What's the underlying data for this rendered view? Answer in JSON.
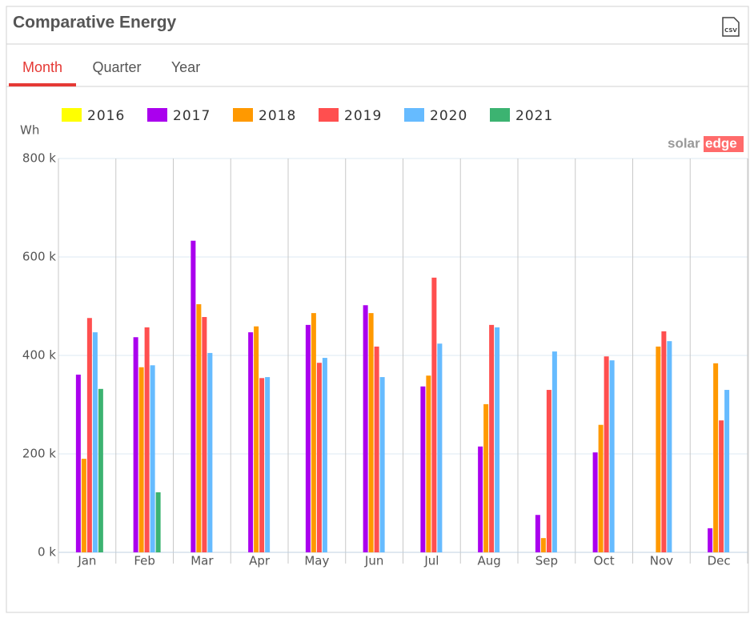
{
  "header": {
    "title": "Comparative Energy",
    "csv_icon": "CSV"
  },
  "tabs": [
    "Month",
    "Quarter",
    "Year"
  ],
  "logo": {
    "part1": "solar",
    "part2": "edge"
  },
  "chart_data": {
    "type": "bar",
    "y_label": "Wh",
    "categories": [
      "Jan",
      "Feb",
      "Mar",
      "Apr",
      "May",
      "Jun",
      "Jul",
      "Aug",
      "Sep",
      "Oct",
      "Nov",
      "Dec"
    ],
    "series": [
      {
        "name": "2016",
        "color": "#ffff00",
        "values": [
          null,
          null,
          null,
          null,
          null,
          null,
          null,
          null,
          null,
          null,
          null,
          null
        ]
      },
      {
        "name": "2017",
        "color": "#aa00ee",
        "values": [
          361000,
          437000,
          633000,
          447000,
          462000,
          502000,
          337000,
          215000,
          76000,
          203000,
          null,
          49000
        ]
      },
      {
        "name": "2018",
        "color": "#ff9900",
        "values": [
          190000,
          376000,
          504000,
          459000,
          486000,
          486000,
          359000,
          301000,
          29000,
          259000,
          418000,
          384000
        ]
      },
      {
        "name": "2019",
        "color": "#ff4f4f",
        "values": [
          476000,
          457000,
          478000,
          354000,
          385000,
          418000,
          558000,
          462000,
          330000,
          398000,
          449000,
          268000
        ]
      },
      {
        "name": "2020",
        "color": "#66bbff",
        "values": [
          447000,
          380000,
          405000,
          356000,
          395000,
          356000,
          424000,
          457000,
          408000,
          390000,
          429000,
          330000
        ]
      },
      {
        "name": "2021",
        "color": "#3cb371",
        "values": [
          332000,
          122000,
          null,
          null,
          null,
          null,
          null,
          null,
          null,
          null,
          null,
          null
        ]
      }
    ],
    "ylim": [
      0,
      800000
    ],
    "yticks": [
      {
        "value": 0,
        "label": "0 k"
      },
      {
        "value": 200000,
        "label": "200 k"
      },
      {
        "value": 400000,
        "label": "400 k"
      },
      {
        "value": 600000,
        "label": "600 k"
      },
      {
        "value": 800000,
        "label": "800 k"
      }
    ],
    "grid": true
  }
}
